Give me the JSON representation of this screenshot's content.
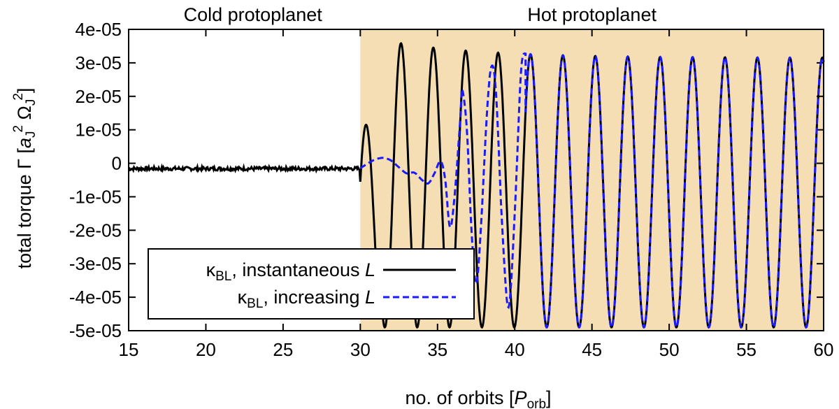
{
  "chart_data": {
    "type": "line",
    "xlabel": "no. of orbits [P_orb]",
    "xlabel_parts": {
      "main": "no. of orbits [",
      "var": "P",
      "sub": "orb",
      "close": "]"
    },
    "ylabel": "total torque Γ [a_J^2 Ω_J^2]",
    "ylabel_parts": {
      "main": "total torque Γ [",
      "a": "a",
      "sub1": "J",
      "sup1": "2",
      "omega": " Ω",
      "sub2": "J",
      "sup2": "2",
      "close": "]"
    },
    "xlim": [
      15,
      60
    ],
    "ylim": [
      -5e-05,
      4e-05
    ],
    "x_ticks": [
      15,
      20,
      25,
      30,
      35,
      40,
      45,
      50,
      55,
      60
    ],
    "y_ticks": [
      4e-05,
      3e-05,
      2e-05,
      1e-05,
      0,
      -1e-05,
      -2e-05,
      -3e-05,
      -4e-05,
      -5e-05
    ],
    "y_tick_labels": [
      "4e-05",
      "3e-05",
      "2e-05",
      "1e-05",
      "0",
      "-1e-05",
      "-2e-05",
      "-3e-05",
      "-4e-05",
      "-5e-05"
    ],
    "regions": [
      {
        "label": "Cold protoplanet",
        "x_range": [
          15,
          30
        ],
        "color": "#ffffff"
      },
      {
        "label": "Hot protoplanet",
        "x_range": [
          30,
          60
        ],
        "color": "#f5deb3"
      }
    ],
    "series": [
      {
        "name": "κBL, instantaneous L",
        "legend": {
          "kappa": "κ",
          "sub": "BL",
          "text": ", instantaneous ",
          "var": "L"
        },
        "color": "#000000",
        "style": "solid",
        "cold_level": -1.6e-06,
        "hot": {
          "x_start": 30,
          "period": 2.1,
          "amp_center": -7e-06,
          "amp_half": 4e-05,
          "peak_first": 1.15e-05,
          "peak_second": 3.6e-05,
          "trough_first": -4.9e-05
        }
      },
      {
        "name": "κBL, increasing L",
        "legend": {
          "kappa": "κ",
          "sub": "BL",
          "text": ", increasing ",
          "var": "L"
        },
        "color": "#1a1aff",
        "style": "dashed",
        "points": [
          [
            30,
            -1.5e-06
          ],
          [
            30.5,
            0
          ],
          [
            31,
            1.2e-06
          ],
          [
            31.5,
            1.6e-06
          ],
          [
            32,
            8e-07
          ],
          [
            32.5,
            -1.2e-06
          ],
          [
            33,
            -3e-06
          ],
          [
            33.5,
            -2.8e-06
          ],
          [
            34,
            -5e-06
          ],
          [
            34.4,
            -6e-06
          ],
          [
            34.8,
            -3e-06
          ],
          [
            35.2,
            6e-07
          ],
          [
            35.5,
            -5e-06
          ],
          [
            35.8,
            -1.9e-05
          ],
          [
            36.1,
            -1e-05
          ],
          [
            36.5,
            1.5e-05
          ],
          [
            36.6,
            2.2e-05
          ],
          [
            36.9,
            1e-05
          ],
          [
            37.2,
            -2e-05
          ],
          [
            37.5,
            -3.6e-05
          ],
          [
            37.8,
            -2e-05
          ],
          [
            38.2,
            1.5e-05
          ],
          [
            38.5,
            2.9e-05
          ],
          [
            38.8,
            2e-05
          ],
          [
            39.2,
            -2e-05
          ],
          [
            39.6,
            -4.3e-05
          ],
          [
            40,
            -1.5e-05
          ],
          [
            40.4,
            2.7e-05
          ],
          [
            40.7,
            3.3e-05
          ]
        ],
        "merge_x": 40.7
      }
    ],
    "legend_position": "bottom-left"
  }
}
